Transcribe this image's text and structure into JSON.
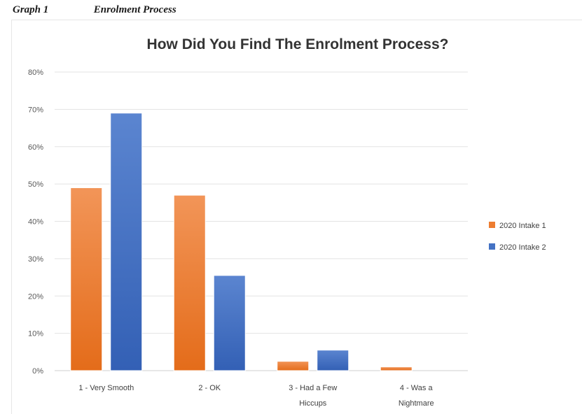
{
  "caption": {
    "number": "Graph 1",
    "title": "Enrolment Process"
  },
  "chart_data": {
    "type": "bar",
    "title": "How Did You Find The Enrolment Process?",
    "categories": [
      [
        "1 - Very Smooth"
      ],
      [
        "2 - OK"
      ],
      [
        "3 - Had a Few",
        "Hiccups"
      ],
      [
        "4 - Was a",
        "Nightmare"
      ]
    ],
    "series": [
      {
        "name": "2020 Intake 1",
        "color": "#ed7d31",
        "values": [
          49,
          47,
          2.5,
          1
        ]
      },
      {
        "name": "2020 Intake 2",
        "color": "#4472c4",
        "values": [
          69,
          25.5,
          5.5,
          0
        ]
      }
    ],
    "yticks": [
      "0%",
      "10%",
      "20%",
      "30%",
      "40%",
      "50%",
      "60%",
      "70%",
      "80%"
    ],
    "ylim": [
      0,
      80
    ],
    "grid": true,
    "legend_position": "right"
  }
}
